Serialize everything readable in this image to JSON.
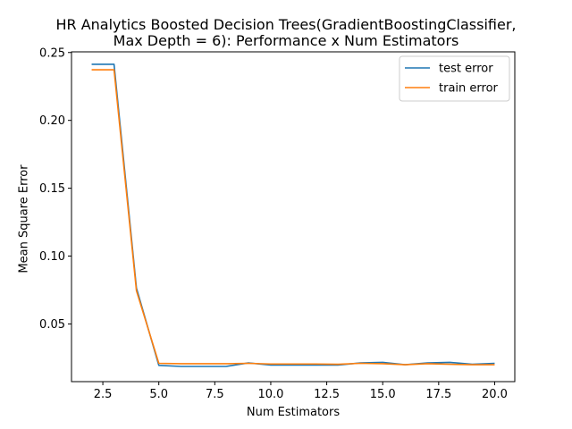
{
  "chart_data": {
    "type": "line",
    "title_line1": "HR Analytics Boosted Decision Trees(GradientBoostingClassifier,",
    "title_line2": "Max Depth = 6): Performance x Num Estimators",
    "xlabel": "Num Estimators",
    "ylabel": "Mean Square Error",
    "xlim": [
      1.1,
      20.9
    ],
    "ylim": [
      0.0075,
      0.2505
    ],
    "xticks": [
      2.5,
      5.0,
      7.5,
      10.0,
      12.5,
      15.0,
      17.5,
      20.0
    ],
    "yticks": [
      0.05,
      0.1,
      0.15,
      0.2,
      0.25
    ],
    "legend_position": "top-right",
    "grid": false,
    "x": [
      2,
      3,
      4,
      5,
      6,
      7,
      8,
      9,
      10,
      11,
      12,
      13,
      14,
      15,
      16,
      17,
      18,
      19,
      20
    ],
    "series": [
      {
        "name": "test error",
        "color": "#1f77b4",
        "values": [
          0.2413,
          0.2413,
          0.0765,
          0.0195,
          0.0187,
          0.0187,
          0.0187,
          0.0213,
          0.0197,
          0.0197,
          0.0197,
          0.0197,
          0.0213,
          0.0217,
          0.02,
          0.0213,
          0.0217,
          0.0203,
          0.021
        ]
      },
      {
        "name": "train error",
        "color": "#ff7f0e",
        "values": [
          0.2373,
          0.2373,
          0.0745,
          0.021,
          0.0207,
          0.0207,
          0.0207,
          0.021,
          0.0205,
          0.0205,
          0.0205,
          0.0203,
          0.021,
          0.0207,
          0.02,
          0.0207,
          0.0203,
          0.02,
          0.02
        ]
      }
    ]
  }
}
